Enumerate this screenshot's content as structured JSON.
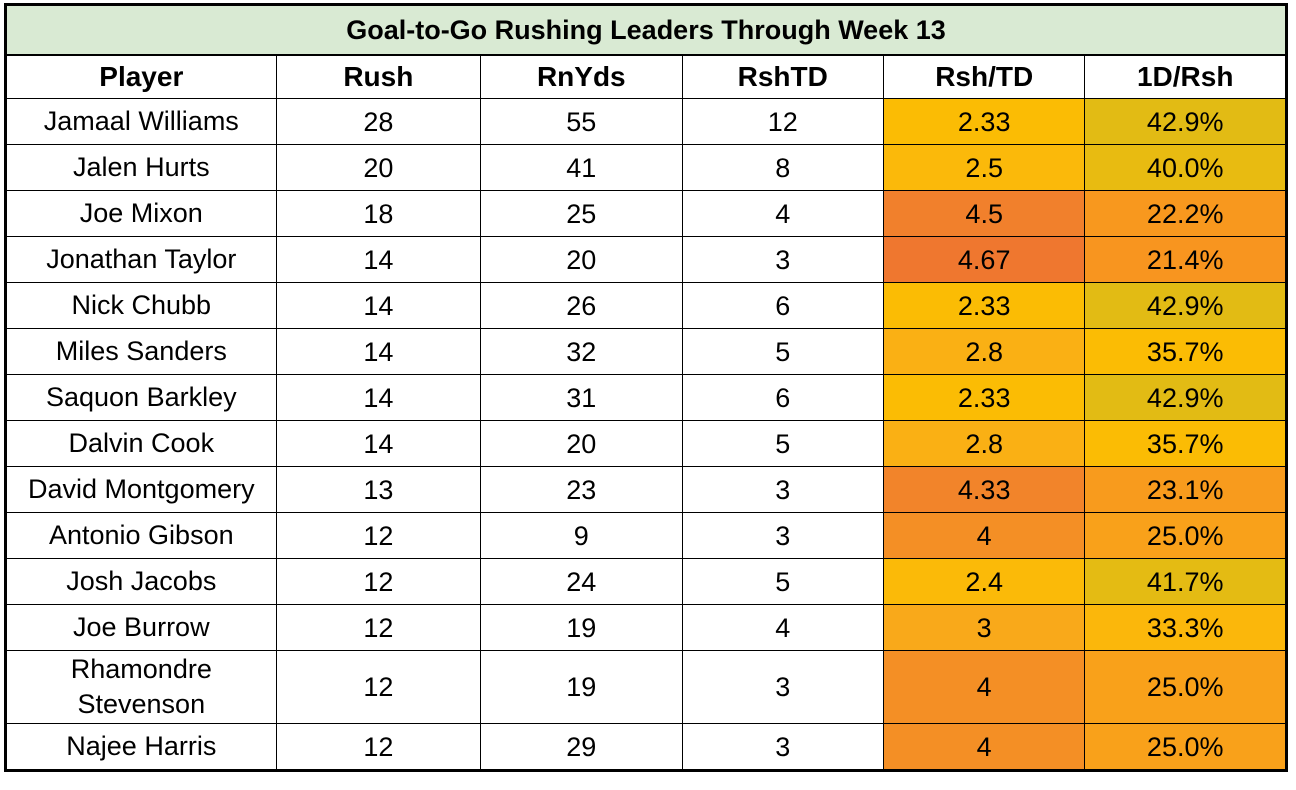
{
  "title": "Goal-to-Go Rushing Leaders Through Week 13",
  "columns": [
    "Player",
    "Rush",
    "RnYds",
    "RshTD",
    "Rsh/TD",
    "1D/Rsh"
  ],
  "rows": [
    {
      "player": "Jamaal Williams",
      "rush": "28",
      "rnyds": "55",
      "rshtd": "12",
      "rsh_td": "2.33",
      "fd_rsh": "42.9%",
      "rsh_td_color": "#fbbc04",
      "fd_rsh_color": "#e2bb14"
    },
    {
      "player": "Jalen Hurts",
      "rush": "20",
      "rnyds": "41",
      "rshtd": "8",
      "rsh_td": "2.5",
      "fd_rsh": "40.0%",
      "rsh_td_color": "#fbb90a",
      "fd_rsh_color": "#e8bb11"
    },
    {
      "player": "Joe Mixon",
      "rush": "18",
      "rnyds": "25",
      "rshtd": "4",
      "rsh_td": "4.5",
      "fd_rsh": "22.2%",
      "rsh_td_color": "#f1802c",
      "fd_rsh_color": "#f8981e"
    },
    {
      "player": "Jonathan Taylor",
      "rush": "14",
      "rnyds": "20",
      "rshtd": "3",
      "rsh_td": "4.67",
      "fd_rsh": "21.4%",
      "rsh_td_color": "#ef772f",
      "fd_rsh_color": "#f8951f"
    },
    {
      "player": "Nick Chubb",
      "rush": "14",
      "rnyds": "26",
      "rshtd": "6",
      "rsh_td": "2.33",
      "fd_rsh": "42.9%",
      "rsh_td_color": "#fbbc04",
      "fd_rsh_color": "#e2bb14"
    },
    {
      "player": "Miles Sanders",
      "rush": "14",
      "rnyds": "32",
      "rshtd": "5",
      "rsh_td": "2.8",
      "fd_rsh": "35.7%",
      "rsh_td_color": "#fab014",
      "fd_rsh_color": "#fbbc04"
    },
    {
      "player": "Saquon Barkley",
      "rush": "14",
      "rnyds": "31",
      "rshtd": "6",
      "rsh_td": "2.33",
      "fd_rsh": "42.9%",
      "rsh_td_color": "#fbbc04",
      "fd_rsh_color": "#e2bb14"
    },
    {
      "player": "Dalvin Cook",
      "rush": "14",
      "rnyds": "20",
      "rshtd": "5",
      "rsh_td": "2.8",
      "fd_rsh": "35.7%",
      "rsh_td_color": "#fab014",
      "fd_rsh_color": "#fbbc04"
    },
    {
      "player": "David Montgomery",
      "rush": "13",
      "rnyds": "23",
      "rshtd": "3",
      "rsh_td": "4.33",
      "fd_rsh": "23.1%",
      "rsh_td_color": "#f2842a",
      "fd_rsh_color": "#f89b1d"
    },
    {
      "player": "Antonio Gibson",
      "rush": "12",
      "rnyds": "9",
      "rshtd": "3",
      "rsh_td": "4",
      "fd_rsh": "25.0%",
      "rsh_td_color": "#f48f25",
      "fd_rsh_color": "#f9a11a"
    },
    {
      "player": "Josh Jacobs",
      "rush": "12",
      "rnyds": "24",
      "rshtd": "5",
      "rsh_td": "2.4",
      "fd_rsh": "41.7%",
      "rsh_td_color": "#fbba08",
      "fd_rsh_color": "#e4bb13"
    },
    {
      "player": "Joe Burrow",
      "rush": "12",
      "rnyds": "19",
      "rshtd": "4",
      "rsh_td": "3",
      "fd_rsh": "33.3%",
      "rsh_td_color": "#f9a91a",
      "fd_rsh_color": "#fbb70b"
    },
    {
      "player": "Rhamondre Stevenson",
      "rush": "12",
      "rnyds": "19",
      "rshtd": "3",
      "rsh_td": "4",
      "fd_rsh": "25.0%",
      "rsh_td_color": "#f48f25",
      "fd_rsh_color": "#f9a11a",
      "tall": true
    },
    {
      "player": "Najee Harris",
      "rush": "12",
      "rnyds": "29",
      "rshtd": "3",
      "rsh_td": "4",
      "fd_rsh": "25.0%",
      "rsh_td_color": "#f48f25",
      "fd_rsh_color": "#f9a11a"
    }
  ]
}
